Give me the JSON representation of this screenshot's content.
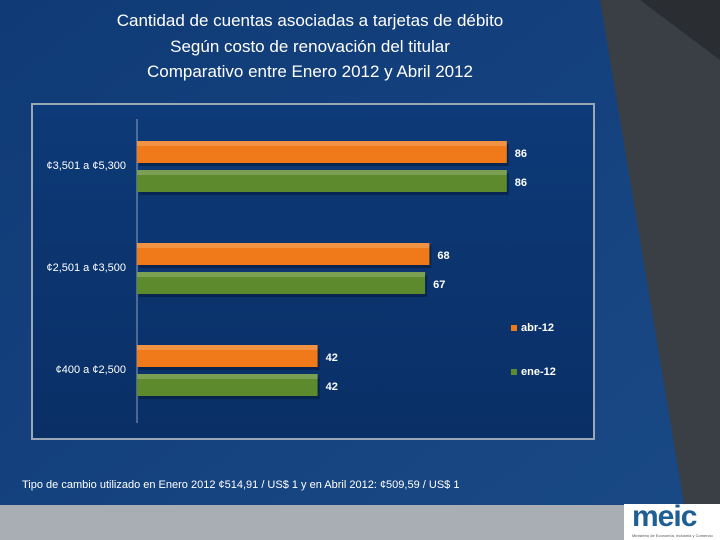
{
  "slide": {
    "title_lines": [
      "Cantidad de cuentas asociadas a tarjetas de débito",
      "Según costo de renovación del titular",
      "Comparativo entre  Enero  2012 y Abril 2012"
    ],
    "footnote": "Tipo de cambio utilizado en  Enero 2012  ¢514,91 / US$ 1 y en Abril 2012: ¢509,59 / US$ 1",
    "logo_text": "meic",
    "logo_subtext": "Ministerio de Economía, Industria y Comercio"
  },
  "colors": {
    "abr": "#f07a1a",
    "ene": "#5e8a2e",
    "panel": "#0b3270",
    "background": "#153f7a"
  },
  "chart_data": {
    "type": "bar",
    "orientation": "horizontal",
    "title": "Cantidad de cuentas asociadas a tarjetas de débito",
    "categories": [
      "¢3,501  a ¢5,300",
      "¢2,501  a ¢3,500",
      "¢400  a ¢2,500"
    ],
    "series": [
      {
        "name": "abr-12",
        "values": [
          86,
          68,
          42
        ]
      },
      {
        "name": "ene-12",
        "values": [
          86,
          67,
          42
        ]
      }
    ],
    "xlim": [
      0,
      100
    ],
    "grid": false,
    "legend": "right"
  }
}
